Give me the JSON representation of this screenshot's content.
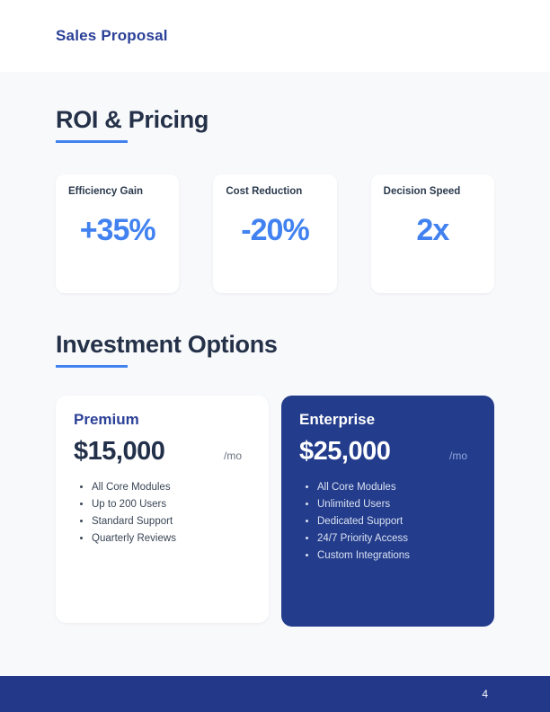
{
  "header": {
    "title": "Sales Proposal"
  },
  "sections": {
    "roi": {
      "heading": "ROI & Pricing",
      "stats": [
        {
          "label": "Efficiency Gain",
          "value": "+35%"
        },
        {
          "label": "Cost Reduction",
          "value": "-20%"
        },
        {
          "label": "Decision Speed",
          "value": "2x"
        }
      ]
    },
    "investment": {
      "heading": "Investment Options",
      "plans": [
        {
          "name": "Premium",
          "price": "$15,000",
          "period": "/mo",
          "features": [
            "All Core Modules",
            "Up to 200 Users",
            "Standard Support",
            "Quarterly Reviews"
          ]
        },
        {
          "name": "Enterprise",
          "price": "$25,000",
          "period": "/mo",
          "features": [
            "All Core Modules",
            "Unlimited Users",
            "Dedicated Support",
            "24/7 Priority Access",
            "Custom Integrations"
          ]
        }
      ]
    }
  },
  "footer": {
    "page_number": "4"
  },
  "colors": {
    "page_background": "#f8f9fb",
    "header_background": "#ffffff",
    "brand_blue": "#2b4097",
    "accent_blue": "#4182f0",
    "navy_text": "#243148",
    "enterprise_card_background": "#233c8b",
    "footer_background": "#24388a"
  }
}
